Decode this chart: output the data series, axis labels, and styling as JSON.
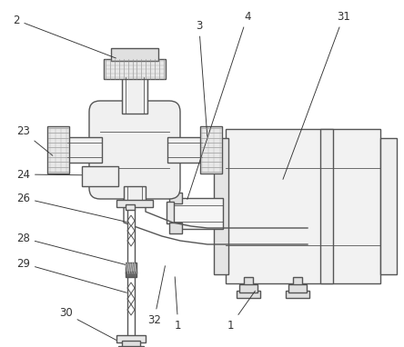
{
  "bg_color": "#ffffff",
  "line_color": "#555555",
  "lw": 1.0,
  "tlw": 0.6,
  "label_color": "#333333",
  "label_fs": 8.5
}
